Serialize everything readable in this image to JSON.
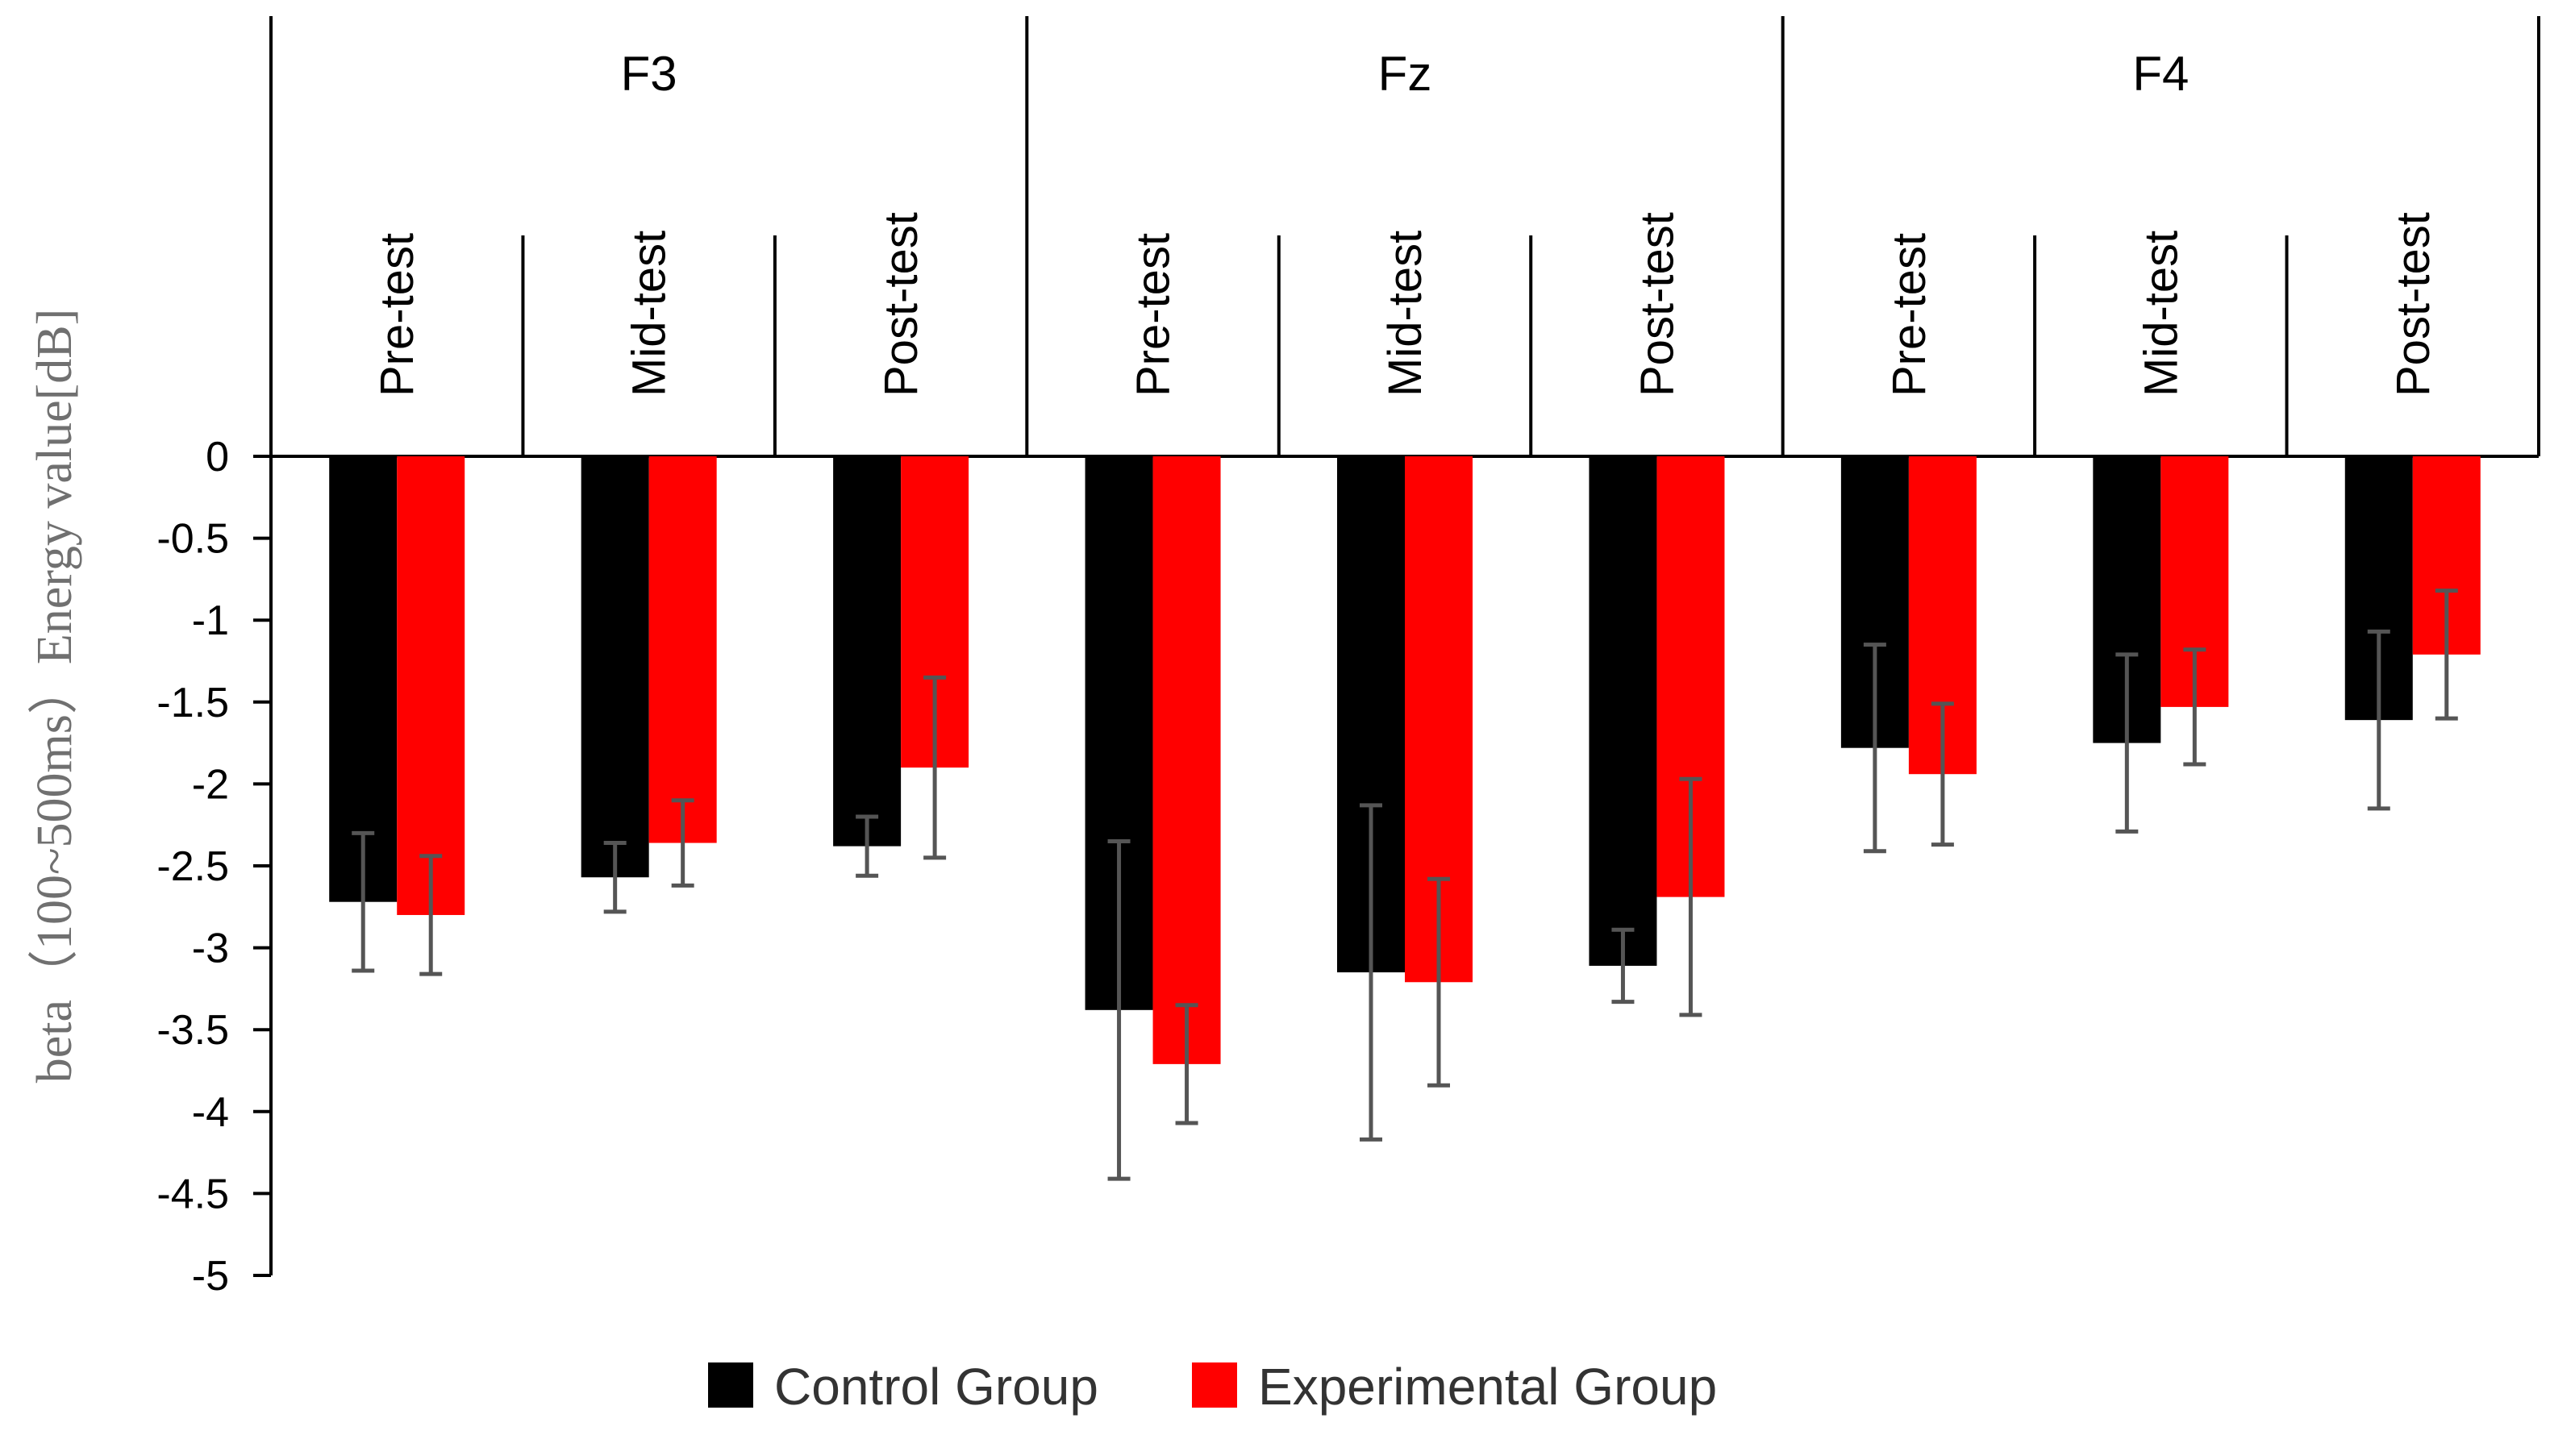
{
  "chart_data": {
    "type": "bar",
    "title": "",
    "xlabel": "",
    "ylabel": "beta（100~500ms）Energy value[dB]",
    "ylim": [
      -5,
      0
    ],
    "yticks": [
      0,
      -0.5,
      -1,
      -1.5,
      -2,
      -2.5,
      -3,
      -3.5,
      -4,
      -4.5,
      -5
    ],
    "ytick_labels": [
      "0",
      "-0.5",
      "-1",
      "-1.5",
      "-2",
      "-2.5",
      "-3",
      "-3.5",
      "-4",
      "-4.5",
      "-5"
    ],
    "groups": [
      "F3",
      "Fz",
      "F4"
    ],
    "phases": [
      "Pre-test",
      "Mid-test",
      "Post-test"
    ],
    "categories": [
      "F3 Pre-test",
      "F3 Mid-test",
      "F3 Post-test",
      "Fz Pre-test",
      "Fz Mid-test",
      "Fz Post-test",
      "F4 Pre-test",
      "F4 Mid-test",
      "F4 Post-test"
    ],
    "series": [
      {
        "name": "Control Group",
        "color": "#000000",
        "values": [
          -2.72,
          -2.57,
          -2.38,
          -3.38,
          -3.15,
          -3.11,
          -1.78,
          -1.75,
          -1.61
        ],
        "errors": [
          0.42,
          0.21,
          0.18,
          1.03,
          1.02,
          0.22,
          0.63,
          0.54,
          0.54
        ]
      },
      {
        "name": "Experimental Group",
        "color": "#ff0000",
        "values": [
          -2.8,
          -2.36,
          -1.9,
          -3.71,
          -3.21,
          -2.69,
          -1.94,
          -1.53,
          -1.21
        ],
        "errors": [
          0.36,
          0.26,
          0.55,
          0.36,
          0.63,
          0.72,
          0.43,
          0.35,
          0.39
        ]
      }
    ],
    "legend": "bottom",
    "grid": false,
    "error_bar_color": "#555555"
  }
}
